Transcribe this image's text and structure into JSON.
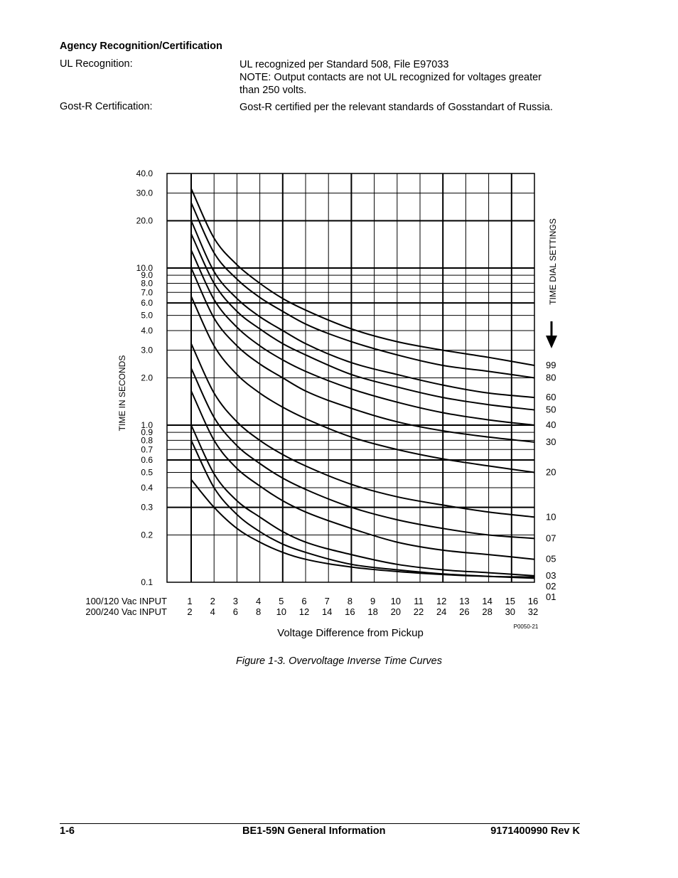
{
  "header": {
    "title": "Agency Recognition/Certification"
  },
  "certifications": [
    {
      "label": "UL Recognition:",
      "lines": [
        "UL recognized per Standard 508, File E97033",
        "NOTE:  Output contacts are not UL recognized for voltages greater",
        "than 250 volts."
      ]
    },
    {
      "label": "Gost-R Certification:",
      "lines": [
        "Gost-R certified per the relevant standards of Gosstandart of Russia."
      ]
    }
  ],
  "chart_data": {
    "type": "line",
    "title": "",
    "xlabel": "Voltage Difference from Pickup",
    "ylabel": "TIME IN SECONDS",
    "right_label": "TIME DIAL SETTINGS",
    "figure_code": "P0050-21",
    "y_scale": "log",
    "ylim": [
      0.1,
      40.0
    ],
    "xlim": [
      0,
      16
    ],
    "grid": true,
    "y_ticks": [
      "40.0",
      "30.0",
      "20.0",
      "10.0",
      "9.0",
      "8.0",
      "7.0",
      "6.0",
      "5.0",
      "4.0",
      "3.0",
      "2.0",
      "1.0",
      "0.9",
      "0.8",
      "0.7",
      "0.6",
      "0.5",
      "0.4",
      "0.3",
      "0.2",
      "0.1"
    ],
    "x_rows": [
      {
        "label": "100/120 Vac INPUT",
        "ticks": [
          "1",
          "2",
          "3",
          "4",
          "5",
          "6",
          "7",
          "8",
          "9",
          "10",
          "11",
          "12",
          "13",
          "14",
          "15",
          "16"
        ]
      },
      {
        "label": "200/240 Vac INPUT",
        "ticks": [
          "2",
          "4",
          "6",
          "8",
          "10",
          "12",
          "14",
          "16",
          "18",
          "20",
          "22",
          "24",
          "26",
          "28",
          "30",
          "32"
        ]
      }
    ],
    "series": [
      {
        "name": "99",
        "x": [
          1,
          2,
          3,
          4,
          5,
          6,
          8,
          10,
          12,
          14,
          16
        ],
        "y": [
          32.0,
          15.5,
          10.5,
          8.0,
          6.4,
          5.4,
          4.1,
          3.4,
          3.0,
          2.7,
          2.4
        ]
      },
      {
        "name": "80",
        "x": [
          1,
          2,
          3,
          4,
          5,
          6,
          8,
          10,
          12,
          14,
          16
        ],
        "y": [
          26.0,
          12.5,
          8.5,
          6.5,
          5.3,
          4.4,
          3.4,
          2.8,
          2.4,
          2.2,
          2.0
        ]
      },
      {
        "name": "60",
        "x": [
          1,
          2,
          3,
          4,
          5,
          6,
          8,
          10,
          12,
          14,
          16
        ],
        "y": [
          20.0,
          9.5,
          6.4,
          4.9,
          4.0,
          3.3,
          2.5,
          2.1,
          1.8,
          1.6,
          1.5
        ]
      },
      {
        "name": "50",
        "x": [
          1,
          2,
          3,
          4,
          5,
          6,
          8,
          10,
          12,
          14,
          16
        ],
        "y": [
          16.5,
          8.0,
          5.3,
          4.1,
          3.3,
          2.8,
          2.1,
          1.75,
          1.5,
          1.35,
          1.25
        ]
      },
      {
        "name": "40",
        "x": [
          1,
          2,
          3,
          4,
          5,
          6,
          8,
          10,
          12,
          14,
          16
        ],
        "y": [
          13.0,
          6.3,
          4.2,
          3.2,
          2.6,
          2.2,
          1.7,
          1.4,
          1.2,
          1.08,
          1.0
        ]
      },
      {
        "name": "30",
        "x": [
          1,
          2,
          3,
          4,
          5,
          6,
          8,
          10,
          12,
          14,
          16
        ],
        "y": [
          10.0,
          4.8,
          3.2,
          2.45,
          2.0,
          1.65,
          1.28,
          1.05,
          0.92,
          0.84,
          0.78
        ]
      },
      {
        "name": "20",
        "x": [
          1,
          2,
          3,
          4,
          5,
          6,
          8,
          10,
          12,
          14,
          16
        ],
        "y": [
          6.6,
          3.2,
          2.1,
          1.6,
          1.3,
          1.1,
          0.84,
          0.7,
          0.61,
          0.55,
          0.5
        ]
      },
      {
        "name": "10",
        "x": [
          1,
          2,
          3,
          4,
          5,
          6,
          8,
          10,
          12,
          14,
          16
        ],
        "y": [
          3.3,
          1.6,
          1.05,
          0.8,
          0.65,
          0.55,
          0.42,
          0.35,
          0.31,
          0.28,
          0.26
        ]
      },
      {
        "name": "07",
        "x": [
          1,
          2,
          3,
          4,
          5,
          6,
          8,
          10,
          12,
          14,
          16
        ],
        "y": [
          2.3,
          1.12,
          0.74,
          0.57,
          0.46,
          0.39,
          0.3,
          0.25,
          0.22,
          0.2,
          0.19
        ]
      },
      {
        "name": "05",
        "x": [
          1,
          2,
          3,
          4,
          5,
          6,
          8,
          10,
          12,
          14,
          16
        ],
        "y": [
          1.65,
          0.8,
          0.53,
          0.41,
          0.33,
          0.28,
          0.22,
          0.18,
          0.16,
          0.15,
          0.14
        ]
      },
      {
        "name": "03",
        "x": [
          1,
          2,
          3,
          4,
          5,
          6,
          8,
          10,
          12,
          14,
          16
        ],
        "y": [
          1.0,
          0.49,
          0.33,
          0.26,
          0.21,
          0.18,
          0.15,
          0.13,
          0.12,
          0.115,
          0.11
        ]
      },
      {
        "name": "02",
        "x": [
          1,
          2,
          3,
          4,
          5,
          6,
          8,
          10,
          12,
          14,
          16
        ],
        "y": [
          0.8,
          0.4,
          0.27,
          0.21,
          0.175,
          0.155,
          0.13,
          0.12,
          0.113,
          0.109,
          0.106
        ]
      },
      {
        "name": "01",
        "x": [
          1,
          2,
          3,
          4,
          5,
          6,
          8,
          10,
          12,
          14,
          16
        ],
        "y": [
          0.45,
          0.3,
          0.22,
          0.18,
          0.155,
          0.14,
          0.125,
          0.117,
          0.112,
          0.109,
          0.108
        ]
      }
    ]
  },
  "figure": {
    "caption": "Figure 1-3. Overvoltage Inverse Time Curves"
  },
  "footer": {
    "left": "1-6",
    "center": "BE1-59N General Information",
    "right": "9171400990 Rev K"
  }
}
